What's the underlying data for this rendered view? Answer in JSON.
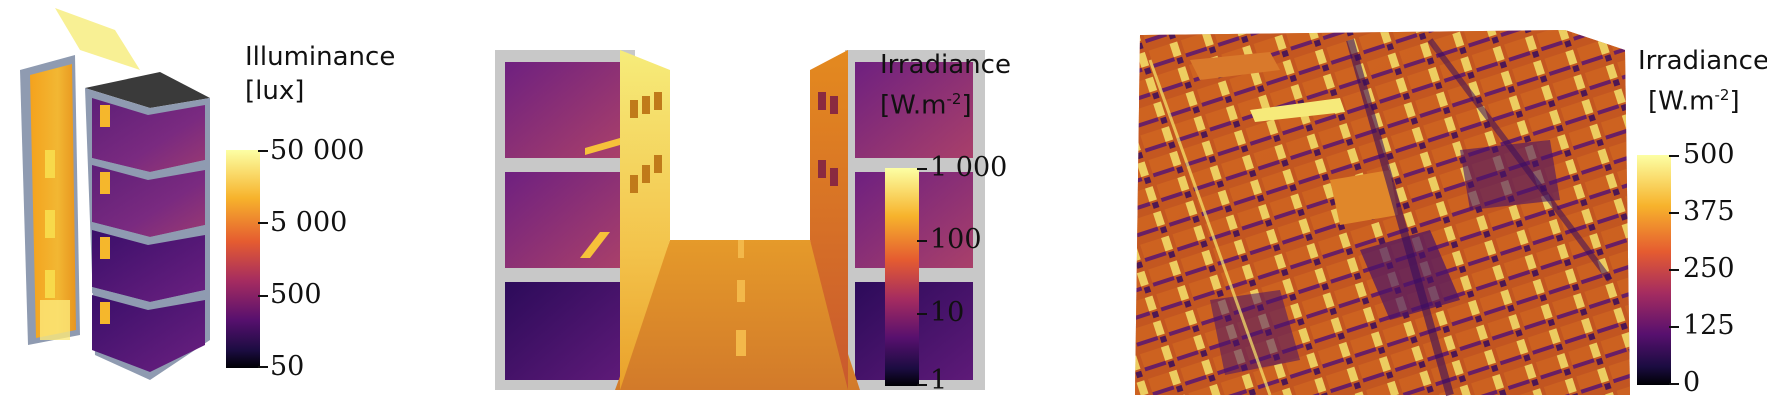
{
  "panels": [
    {
      "id": "building",
      "legend": {
        "title_line1": "Illuminance",
        "title_line2": "[lux]",
        "ticks": [
          "50 000",
          "5 000",
          "500",
          "50"
        ]
      }
    },
    {
      "id": "street",
      "legend": {
        "title_line1": "Irradiance",
        "title_line2": "[W.m",
        "title_sup": "-2",
        "title_close": "]",
        "ticks": [
          "1 000",
          "100",
          "10",
          "1"
        ]
      }
    },
    {
      "id": "city",
      "legend": {
        "title_line1": "Irradiance",
        "title_line2": "[W.m",
        "title_sup": "-2",
        "title_close": "]",
        "ticks": [
          "500",
          "375",
          "250",
          "125",
          "0"
        ]
      }
    }
  ],
  "colormap": "inferno",
  "colors": {
    "cmap_top": "#fcffa4",
    "cmap_hi": "#f7b32c",
    "cmap_mid": "#c6483d",
    "cmap_lo": "#57106e",
    "cmap_bottom": "#000004",
    "frame_gray": "#c8c8c8",
    "wall_blue": "#8f9bb1",
    "roof_dark": "#3a3a3a"
  }
}
